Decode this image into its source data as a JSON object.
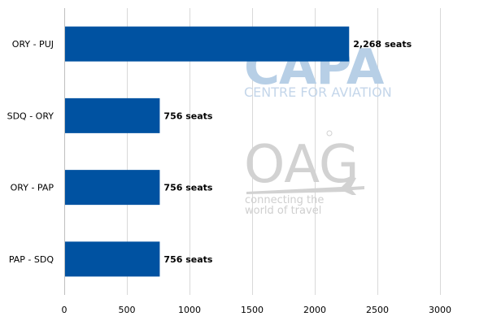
{
  "chart_data": {
    "type": "bar",
    "orientation": "horizontal",
    "categories": [
      "ORY - PUJ",
      "SDQ - ORY",
      "ORY - PAP",
      "PAP - SDQ"
    ],
    "values": [
      2268,
      756,
      756,
      756
    ],
    "data_labels": [
      "2,268 seats",
      "756 seats",
      "756 seats",
      "756 seats"
    ],
    "x_ticks": [
      0,
      500,
      1000,
      1500,
      2000,
      2500,
      3000
    ],
    "xlim": [
      0,
      3000
    ],
    "grid": "vertical",
    "bar_color": "#0052a1",
    "title": "",
    "xlabel": "",
    "ylabel": ""
  },
  "watermarks": {
    "capa_logo": "CAPA",
    "capa_tagline": "CENTRE FOR AVIATION",
    "oag_logo": "OAG",
    "oag_tagline_line1": "connecting the",
    "oag_tagline_line2": "world of travel"
  }
}
